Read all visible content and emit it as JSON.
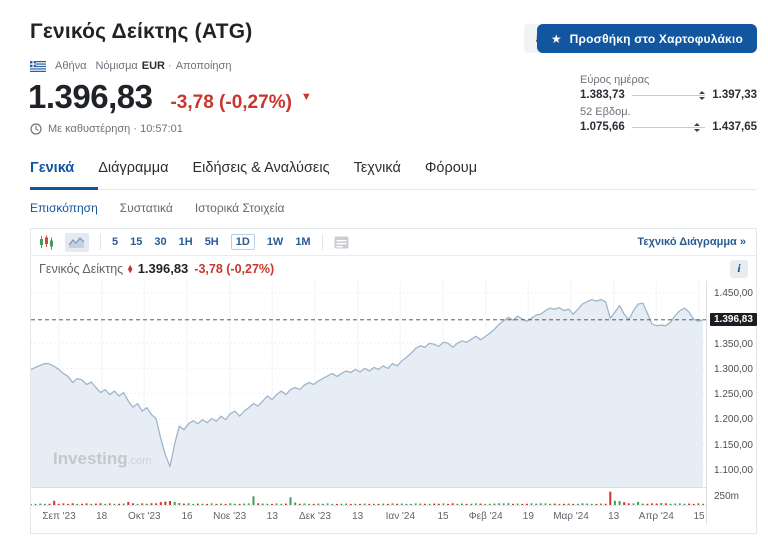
{
  "colors": {
    "brand_blue": "#1256a0",
    "red": "#c8362e",
    "green": "#3f9e5f",
    "area_fill": "#e7edf4",
    "area_line": "#9fb6ca",
    "ref_line": "#43484d",
    "grid": "#e4e7ea",
    "vgrid": "#f1f3f5"
  },
  "icons": {
    "star": "★",
    "triangle_down": "▼",
    "marker_diamond": "◆",
    "info": "i",
    "bell_plus": "+"
  },
  "header": {
    "title": "Γενικός Δείκτης (ATG)",
    "exchange": "Αθήνα",
    "currency_label": "Νόμισμα",
    "currency": "EUR",
    "meta_separator": "·",
    "disclaimer": "Αποποίηση",
    "price": "1.396,83",
    "change": "-3,78 (-0,27%)",
    "delay_note": "Με καθυστέρηση · 10:57:01",
    "portfolio_button": "Προσθήκη στο Χαρτοφυλάκιο",
    "day_range": {
      "label": "Εύρος ημέρας",
      "low": "1.383,73",
      "high": "1.397,33",
      "pos": 0.96
    },
    "week52_range": {
      "label": "52 Εβδομ.",
      "low": "1.075,66",
      "high": "1.437,65",
      "pos": 0.887
    }
  },
  "tabs": [
    {
      "label": "Γενικά",
      "active": true
    },
    {
      "label": "Διάγραμμα",
      "active": false
    },
    {
      "label": "Ειδήσεις & Αναλύσεις",
      "active": false
    },
    {
      "label": "Τεχνικά",
      "active": false
    },
    {
      "label": "Φόρουμ",
      "active": false
    }
  ],
  "subtabs": [
    {
      "label": "Επισκόπηση",
      "active": true
    },
    {
      "label": "Συστατικά",
      "active": false
    },
    {
      "label": "Ιστορικά Στοιχεία",
      "active": false
    }
  ],
  "toolbar": {
    "timeframes": [
      "5",
      "15",
      "30",
      "1H",
      "5H",
      "1D",
      "1W",
      "1M"
    ],
    "selected": "1D",
    "tech_link": "Τεχνικό Διάγραμμα »"
  },
  "chart_header": {
    "name": "Γενικός Δείκτης",
    "price": "1.396,83",
    "change": "-3,78 (-0,27%)"
  },
  "chart_data": {
    "type": "area",
    "title": "Γενικός Δείκτης",
    "ylim": [
      1064,
      1474
    ],
    "last_value": 1396.83,
    "last_label": "1.396,83",
    "y_ticks": [
      {
        "v": 1450,
        "label": "1.450,00"
      },
      {
        "v": 1350,
        "label": "1.350,00"
      },
      {
        "v": 1300,
        "label": "1.300,00"
      },
      {
        "v": 1250,
        "label": "1.250,00"
      },
      {
        "v": 1200,
        "label": "1.200,00"
      },
      {
        "v": 1150,
        "label": "1.150,00"
      },
      {
        "v": 1100,
        "label": "1.100,00"
      }
    ],
    "x_labels": [
      "Σεπ '23",
      "18",
      "Οκτ '23",
      "16",
      "Νοε '23",
      "13",
      "Δεκ '23",
      "13",
      "Ιαν '24",
      "15",
      "Φεβ '24",
      "19",
      "Μαρ '24",
      "13",
      "Απρ '24",
      "15"
    ],
    "volume_axis_label": "250m",
    "watermark_bold": "Investing",
    "watermark_light": ".com",
    "prices": [
      1298,
      1302,
      1306,
      1310,
      1309,
      1304,
      1298,
      1290,
      1284,
      1272,
      1280,
      1277,
      1268,
      1273,
      1262,
      1252,
      1258,
      1248,
      1255,
      1245,
      1252,
      1235,
      1223,
      1230,
      1215,
      1222,
      1208,
      1200,
      1160,
      1128,
      1105,
      1150,
      1185,
      1178,
      1190,
      1196,
      1190,
      1198,
      1192,
      1200,
      1195,
      1205,
      1198,
      1210,
      1215,
      1205,
      1215,
      1222,
      1230,
      1225,
      1235,
      1245,
      1238,
      1248,
      1255,
      1248,
      1258,
      1262,
      1258,
      1267,
      1272,
      1268,
      1275,
      1280,
      1285,
      1290,
      1284,
      1290,
      1295,
      1292,
      1298,
      1293,
      1300,
      1295,
      1302,
      1298,
      1305,
      1300,
      1310,
      1305,
      1315,
      1322,
      1330,
      1340,
      1345,
      1342,
      1350,
      1348,
      1344,
      1352,
      1350,
      1342,
      1350,
      1355,
      1352,
      1358,
      1364,
      1357,
      1363,
      1370,
      1378,
      1388,
      1395,
      1402,
      1396,
      1404,
      1398,
      1394,
      1400,
      1406,
      1408,
      1415,
      1420,
      1418,
      1421,
      1415,
      1418,
      1408,
      1418,
      1428,
      1433,
      1437,
      1434,
      1437,
      1432,
      1400,
      1412,
      1425,
      1408,
      1397,
      1415,
      1428,
      1430,
      1410,
      1388,
      1385,
      1386,
      1385,
      1392,
      1405,
      1415,
      1420,
      1412,
      1398,
      1394,
      1397
    ],
    "volume": [
      0.08,
      0.06,
      0.1,
      0.07,
      0.09,
      0.3,
      0.08,
      0.11,
      0.07,
      0.12,
      0.06,
      0.09,
      0.11,
      0.07,
      0.1,
      0.12,
      0.08,
      0.11,
      0.07,
      0.09,
      0.1,
      0.22,
      0.12,
      0.08,
      0.11,
      0.09,
      0.13,
      0.12,
      0.2,
      0.24,
      0.28,
      0.22,
      0.14,
      0.1,
      0.12,
      0.08,
      0.1,
      0.09,
      0.07,
      0.11,
      0.08,
      0.1,
      0.07,
      0.12,
      0.09,
      0.08,
      0.1,
      0.11,
      0.62,
      0.12,
      0.1,
      0.09,
      0.08,
      0.11,
      0.09,
      0.1,
      0.55,
      0.18,
      0.09,
      0.11,
      0.08,
      0.07,
      0.1,
      0.09,
      0.11,
      0.08,
      0.07,
      0.09,
      0.1,
      0.08,
      0.09,
      0.07,
      0.1,
      0.08,
      0.09,
      0.07,
      0.1,
      0.08,
      0.11,
      0.09,
      0.1,
      0.08,
      0.07,
      0.11,
      0.1,
      0.09,
      0.08,
      0.1,
      0.09,
      0.11,
      0.08,
      0.12,
      0.09,
      0.1,
      0.08,
      0.09,
      0.11,
      0.1,
      0.08,
      0.09,
      0.1,
      0.12,
      0.11,
      0.13,
      0.09,
      0.1,
      0.08,
      0.09,
      0.11,
      0.1,
      0.12,
      0.11,
      0.09,
      0.1,
      0.08,
      0.09,
      0.1,
      0.08,
      0.09,
      0.12,
      0.1,
      0.09,
      0.08,
      0.1,
      0.09,
      0.95,
      0.3,
      0.28,
      0.2,
      0.12,
      0.11,
      0.22,
      0.1,
      0.09,
      0.11,
      0.1,
      0.14,
      0.12,
      0.09,
      0.1,
      0.11,
      0.09,
      0.1,
      0.08,
      0.11,
      0.09
    ]
  }
}
